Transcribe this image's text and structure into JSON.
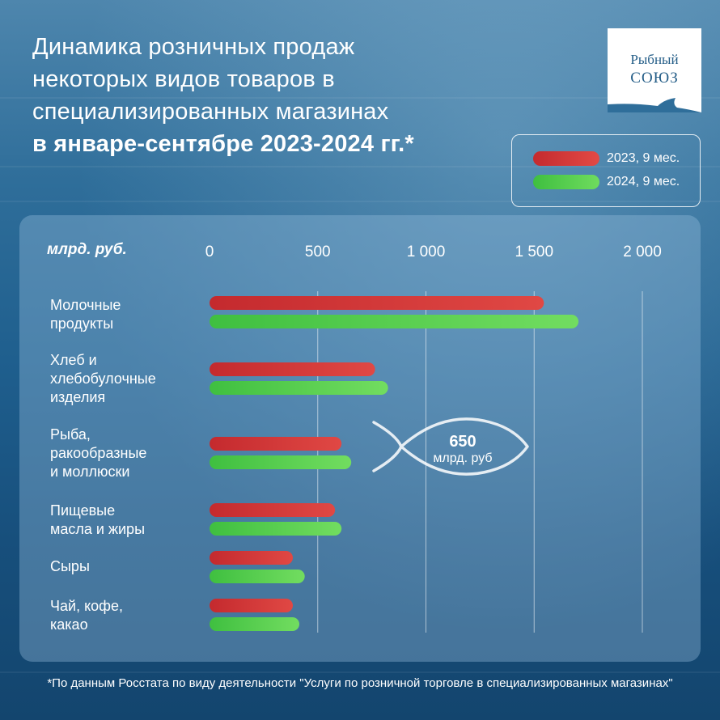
{
  "title": {
    "lines": [
      "Динамика розничных продаж",
      "некоторых видов товаров в",
      "специализированных магазинах"
    ],
    "bold_line": "в январе-сентябре 2023-2024 гг.*"
  },
  "logo": {
    "line1": "Рыбный",
    "line2": "СОЮЗ"
  },
  "legend": [
    {
      "label": "2023, 9 мес.",
      "color": "#d03434"
    },
    {
      "label": "2024, 9 мес.",
      "color": "#4cc94a"
    }
  ],
  "callout": {
    "value": "650",
    "unit": "млрд. руб",
    "icon": "fish-icon"
  },
  "footnote": "*По данным Росстата по виду деятельности \"Услуги по розничной торговле в специализированных магазинах\"",
  "chart_data": {
    "type": "bar",
    "orientation": "horizontal",
    "unit_label": "млрд. руб.",
    "xlim": [
      0,
      2000
    ],
    "ticks": [
      0,
      500,
      1000,
      1500,
      2000
    ],
    "tick_labels": [
      "0",
      "500",
      "1 000",
      "1 500",
      "2 000"
    ],
    "grid": "vertical",
    "categories": [
      [
        "Молочные",
        "продукты"
      ],
      [
        "Хлеб и",
        "хлебобулочные",
        "изделия"
      ],
      [
        "Рыба,",
        "ракообразные",
        "и моллюски"
      ],
      [
        "Пищевые",
        "масла и жиры"
      ],
      [
        "Сыры"
      ],
      [
        "Чай, кофе,",
        "какао"
      ]
    ],
    "series": [
      {
        "name": "2023, 9 мес.",
        "values": [
          1545,
          765,
          610,
          580,
          385,
          385
        ]
      },
      {
        "name": "2024, 9 мес.",
        "values": [
          1705,
          825,
          655,
          610,
          440,
          415
        ]
      }
    ]
  }
}
